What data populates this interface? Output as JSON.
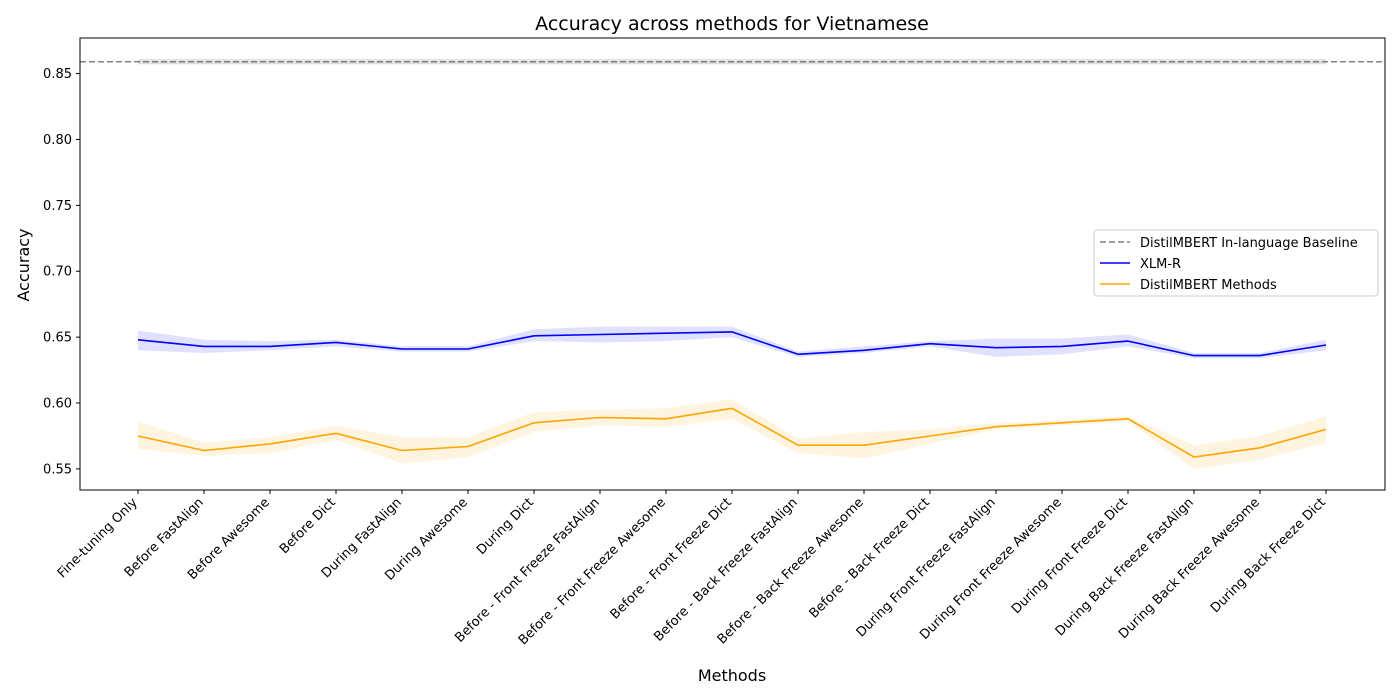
{
  "chart_data": {
    "type": "line",
    "title": "Accuracy across methods for Vietnamese",
    "xlabel": "Methods",
    "ylabel": "Accuracy",
    "ylim": [
      0.534,
      0.877
    ],
    "yticks": [
      0.55,
      0.6,
      0.65,
      0.7,
      0.75,
      0.8,
      0.85
    ],
    "ytick_labels": [
      "0.55",
      "0.60",
      "0.65",
      "0.70",
      "0.75",
      "0.80",
      "0.85"
    ],
    "grid": false,
    "legend_position": "center-right",
    "categories": [
      "Fine-tuning Only",
      "Before FastAlign",
      "Before Awesome",
      "Before Dict",
      "During FastAlign",
      "During Awesome",
      "During Dict",
      "Before - Front Freeze FastAlign",
      "Before - Front Freeze Awesome",
      "Before - Front Freeze Dict",
      "Before - Back Freeze FastAlign",
      "Before - Back Freeze Awesome",
      "Before - Back Freeze Dict",
      "During Front Freeze FastAlign",
      "During Front Freeze Awesome",
      "During Front Freeze Dict",
      "During Back Freeze FastAlign",
      "During Back Freeze Awesome",
      "During Back Freeze Dict"
    ],
    "baseline": {
      "name": "DistilMBERT In-language Baseline",
      "value": 0.859,
      "band": [
        0.857,
        0.861
      ],
      "color": "#808080"
    },
    "series": [
      {
        "name": "XLM-R",
        "color": "#0000ff",
        "values": [
          0.648,
          0.643,
          0.643,
          0.646,
          0.641,
          0.641,
          0.651,
          0.652,
          0.653,
          0.654,
          0.637,
          0.64,
          0.645,
          0.642,
          0.643,
          0.647,
          0.636,
          0.636,
          0.644
        ],
        "lower": [
          0.64,
          0.638,
          0.64,
          0.643,
          0.639,
          0.639,
          0.647,
          0.646,
          0.647,
          0.65,
          0.635,
          0.638,
          0.643,
          0.635,
          0.637,
          0.643,
          0.634,
          0.634,
          0.64
        ],
        "upper": [
          0.655,
          0.648,
          0.647,
          0.648,
          0.643,
          0.643,
          0.656,
          0.658,
          0.658,
          0.658,
          0.639,
          0.643,
          0.647,
          0.649,
          0.649,
          0.652,
          0.638,
          0.638,
          0.648
        ]
      },
      {
        "name": "DistilMBERT Methods",
        "color": "#ffa500",
        "values": [
          0.575,
          0.564,
          0.569,
          0.577,
          0.564,
          0.567,
          0.585,
          0.589,
          0.588,
          0.596,
          0.568,
          0.568,
          0.575,
          0.582,
          0.585,
          0.588,
          0.559,
          0.566,
          0.58
        ],
        "lower": [
          0.565,
          0.56,
          0.562,
          0.572,
          0.554,
          0.559,
          0.578,
          0.583,
          0.582,
          0.588,
          0.562,
          0.558,
          0.569,
          0.58,
          0.583,
          0.586,
          0.55,
          0.557,
          0.57
        ],
        "upper": [
          0.586,
          0.57,
          0.574,
          0.583,
          0.574,
          0.574,
          0.593,
          0.595,
          0.596,
          0.603,
          0.573,
          0.578,
          0.58,
          0.585,
          0.587,
          0.59,
          0.568,
          0.575,
          0.59
        ]
      }
    ]
  }
}
